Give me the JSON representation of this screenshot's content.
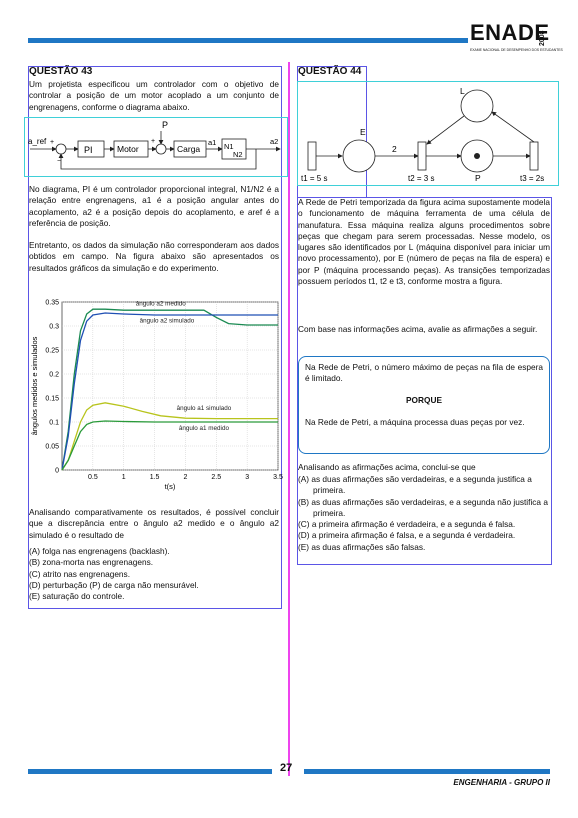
{
  "header": {
    "brand": "ENADE",
    "year": "2008",
    "subtitle": "EXAME NACIONAL DE DESEMPENHO DOS ESTUDANTES"
  },
  "q43": {
    "title": "QUESTÃO 43",
    "intro": "Um projetista especificou um controlador com o objetivo de controlar a posição de um motor acoplado a um conjunto de engrenagens, conforme o diagrama abaixo.",
    "block": {
      "input": "a_ref",
      "pi": "PI",
      "motor": "Motor",
      "carga": "Carga",
      "disturbance": "P",
      "a1": "a1",
      "ratio_num": "N1",
      "ratio_den": "N2",
      "output": "a2",
      "plus": "+",
      "minus": "−"
    },
    "para1": "No diagrama, PI é um controlador proporcional integral, N1/N2 é a relação entre engrenagens, a1 é a posição angular antes do acoplamento, a2 é a posição depois do acoplamento, e aref é a referência de posição.",
    "para2": "Entretanto, os dados da simulação não corresponderam aos dados obtidos em campo. Na figura abaixo são apresentados os resultados gráficos da simulação e do experimento.",
    "question": "Analisando comparativamente os resultados, é possível concluir que a discrepância entre o ângulo a2 medido e o ângulo a2 simulado é o resultado de",
    "options": [
      "(A) folga nas engrenagens (backlash).",
      "(B) zona-morta nas engrenagens.",
      "(C) atrito nas engrenagens.",
      "(D) perturbação (P) de carga não mensurável.",
      "(E) saturação do controle."
    ]
  },
  "chart_data": {
    "type": "line",
    "title": "",
    "xlabel": "t(s)",
    "ylabel": "ângulos medidos e simulados",
    "xlim": [
      0,
      3.5
    ],
    "ylim": [
      0,
      0.35
    ],
    "xticks": [
      "0.5",
      "1",
      "1.5",
      "2",
      "2.5",
      "3",
      "3.5"
    ],
    "yticks": [
      "0",
      "0.05",
      "0.1",
      "0.15",
      "0.2",
      "0.25",
      "0.3",
      "0.35"
    ],
    "grid": true,
    "series": [
      {
        "name": "ângulo a2 medido",
        "color": "#1a8a52",
        "x": [
          0,
          0.1,
          0.2,
          0.3,
          0.4,
          0.5,
          0.7,
          1.0,
          1.5,
          2.0,
          2.3,
          2.5,
          2.7,
          3.0,
          3.5
        ],
        "y": [
          0,
          0.08,
          0.2,
          0.29,
          0.325,
          0.335,
          0.335,
          0.333,
          0.333,
          0.333,
          0.333,
          0.318,
          0.305,
          0.302,
          0.302
        ]
      },
      {
        "name": "ângulo a2 simulado",
        "color": "#1f4fb4",
        "x": [
          0,
          0.1,
          0.2,
          0.3,
          0.4,
          0.5,
          0.7,
          1.0,
          1.5,
          2.0,
          2.5,
          3.0,
          3.5
        ],
        "y": [
          0,
          0.07,
          0.18,
          0.27,
          0.31,
          0.323,
          0.327,
          0.325,
          0.323,
          0.323,
          0.323,
          0.323,
          0.323
        ]
      },
      {
        "name": "ângulo a1 simulado",
        "color": "#b8c41c",
        "x": [
          0,
          0.1,
          0.2,
          0.3,
          0.4,
          0.5,
          0.7,
          1.0,
          1.3,
          1.6,
          2.0,
          2.5,
          3.0,
          3.5
        ],
        "y": [
          0,
          0.02,
          0.06,
          0.1,
          0.125,
          0.135,
          0.14,
          0.133,
          0.122,
          0.113,
          0.108,
          0.107,
          0.107,
          0.107
        ]
      },
      {
        "name": "ângulo a1 medido",
        "color": "#2a9a3a",
        "x": [
          0,
          0.1,
          0.2,
          0.3,
          0.4,
          0.5,
          0.7,
          1.0,
          1.5,
          2.0,
          2.5,
          3.0,
          3.5
        ],
        "y": [
          0,
          0.02,
          0.05,
          0.08,
          0.095,
          0.1,
          0.102,
          0.101,
          0.1,
          0.1,
          0.1,
          0.1,
          0.1
        ]
      }
    ],
    "labels": [
      {
        "text": "ângulo a2 medido",
        "series": 0
      },
      {
        "text": "ângulo a2 simulado",
        "series": 1
      },
      {
        "text": "ângulo a1 simulado",
        "series": 2
      },
      {
        "text": "ângulo a1 medido",
        "series": 3
      }
    ]
  },
  "q44": {
    "title": "QUESTÃO 44",
    "petri": {
      "L": "L",
      "E": "E",
      "P": "P",
      "weight": "2",
      "t1": "t1 = 5 s",
      "t2": "t2 = 3 s",
      "t3": "t3 = 2s"
    },
    "para1": "A Rede de Petri temporizada da figura acima supostamente modela o funcionamento de máquina ferramenta de uma célula de manufatura. Essa máquina realiza alguns procedimentos sobre peças que chegam para serem processadas. Nesse modelo, os lugares são identificados por L (máquina disponível para iniciar um novo processamento), por E (número de peças na fila de espera) e por P (máquina processando peças). As transições temporizadas possuem períodos t1, t2 e t3, conforme mostra a figura.",
    "para2": "Com base nas informações acima, avalie as afirmações a seguir.",
    "assertion1": "Na Rede de Petri, o número máximo de peças na fila de espera é limitado.",
    "porque": "PORQUE",
    "assertion2": "Na Rede de Petri, a máquina processa duas peças por vez.",
    "question": "Analisando as afirmações acima, conclui-se que",
    "options": [
      "(A) as duas afirmações são verdadeiras, e a segunda justifica a primeira.",
      "(B) as duas afirmações são verdadeiras, e a segunda não justifica a primeira.",
      "(C) a primeira afirmação é verdadeira, e a segunda é falsa.",
      "(D) a primeira afirmação é falsa, e a segunda é verdadeira.",
      "(E) as duas afirmações são falsas."
    ]
  },
  "footer": {
    "page": "27",
    "course": "ENGENHARIA - GRUPO II"
  },
  "colors": {
    "accent": "#1f77c4",
    "purple_box": "#5b55e6",
    "cyan_box": "#3fd0d8",
    "divider": "#ee44ee"
  }
}
